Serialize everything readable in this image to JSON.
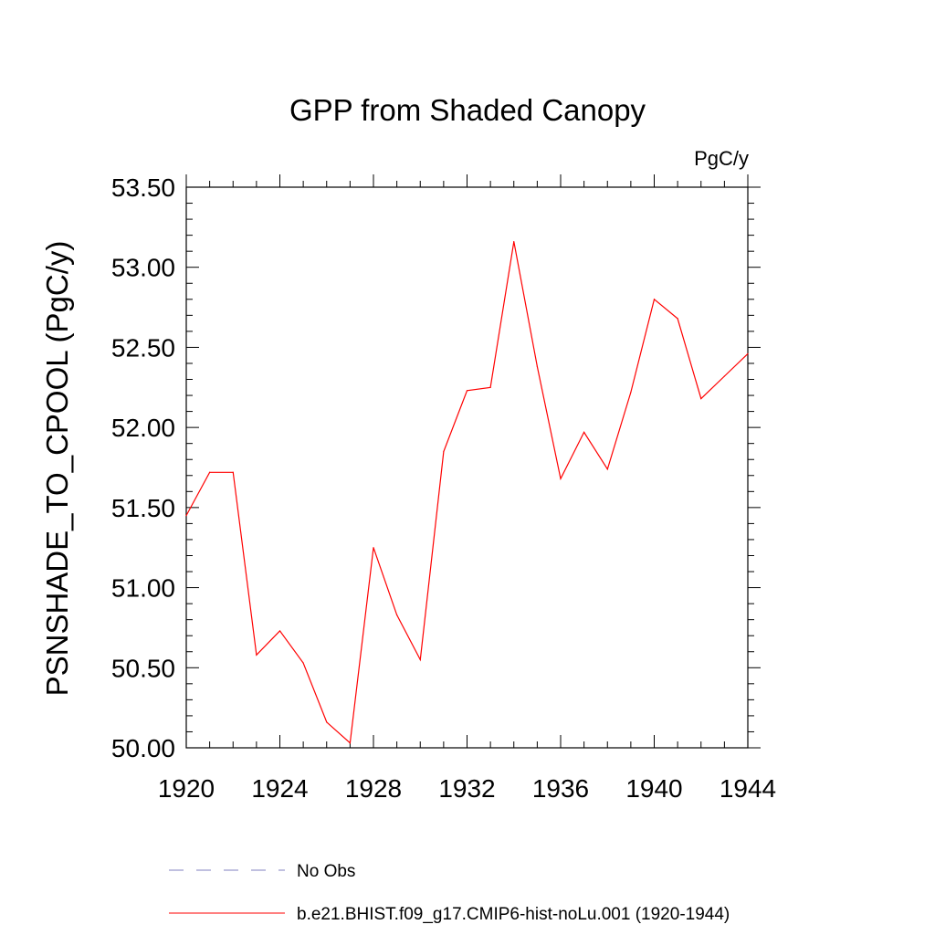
{
  "chart_data": {
    "type": "line",
    "title": "GPP from Shaded Canopy",
    "units_label": "PgC/y",
    "ylabel": "PSNSHADE_TO_CPOOL  (PgC/y)",
    "xlabel": "",
    "xlim": [
      1920,
      1944
    ],
    "ylim": [
      50.0,
      53.5
    ],
    "x_ticks": [
      1920,
      1924,
      1928,
      1932,
      1936,
      1940,
      1944
    ],
    "x_tick_labels": [
      "1920",
      "1924",
      "1928",
      "1932",
      "1936",
      "1940",
      "1944"
    ],
    "y_ticks": [
      50.0,
      50.5,
      51.0,
      51.5,
      52.0,
      52.5,
      53.0,
      53.5
    ],
    "y_tick_labels": [
      "50.00",
      "50.50",
      "51.00",
      "51.50",
      "52.00",
      "52.50",
      "53.00",
      "53.50"
    ],
    "grid": false,
    "legend_position": "bottom",
    "series": [
      {
        "name": "b.e21.BHIST.f09_g17.CMIP6-hist-noLu.001 (1920-1944)",
        "color": "#ff0000",
        "style": "solid",
        "x": [
          1920,
          1921,
          1922,
          1923,
          1924,
          1925,
          1926,
          1927,
          1928,
          1929,
          1930,
          1931,
          1932,
          1933,
          1934,
          1935,
          1936,
          1937,
          1938,
          1939,
          1940,
          1941,
          1942,
          1943,
          1944
        ],
        "values": [
          51.45,
          51.72,
          51.72,
          50.58,
          50.73,
          50.53,
          50.16,
          50.03,
          51.25,
          50.83,
          50.55,
          51.85,
          52.23,
          52.25,
          53.16,
          52.38,
          51.68,
          51.97,
          51.74,
          52.22,
          52.8,
          52.68,
          52.18,
          52.32,
          52.46
        ]
      }
    ],
    "legend": [
      {
        "label": "No Obs",
        "color": "#8080c0",
        "style": "dashed"
      },
      {
        "label": "b.e21.BHIST.f09_g17.CMIP6-hist-noLu.001 (1920-1944)",
        "color": "#ff0000",
        "style": "solid"
      }
    ]
  }
}
